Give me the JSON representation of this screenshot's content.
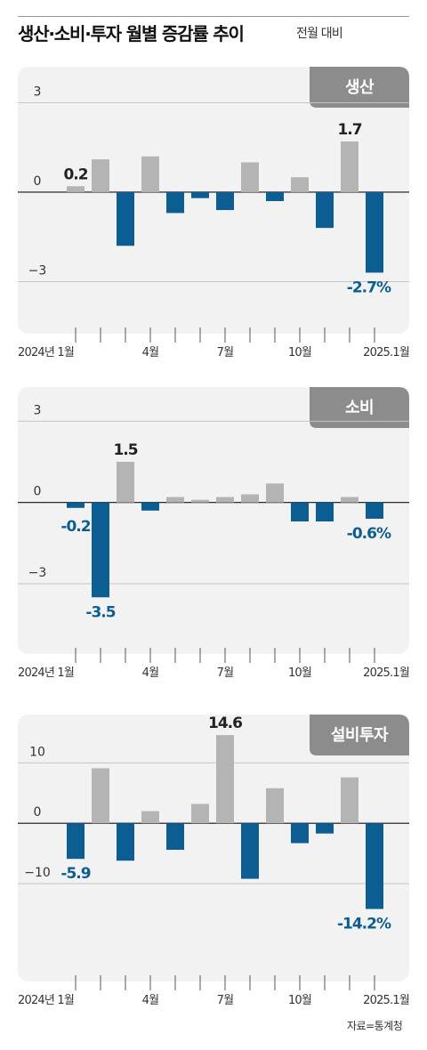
{
  "header": {
    "title": "생산·소비·투자 월별 증감률 추이",
    "subtitle": "전월 대비"
  },
  "source": "자료=통계청",
  "colors": {
    "positive": "#b4b4b4",
    "negative": "#0c5e92",
    "panel_bg": "#f2f2f2",
    "tag_bg": "#8c8c8c"
  },
  "chart_data": [
    {
      "type": "bar",
      "title": "생산",
      "categories": [
        "2024-01",
        "2024-02",
        "2024-03",
        "2024-04",
        "2024-05",
        "2024-06",
        "2024-07",
        "2024-08",
        "2024-09",
        "2024-10",
        "2024-11",
        "2024-12",
        "2025-01"
      ],
      "values": [
        0.2,
        1.1,
        -1.8,
        1.2,
        -0.7,
        -0.2,
        -0.6,
        1.0,
        -0.3,
        0.5,
        -1.2,
        1.7,
        -2.7
      ],
      "value_labels": [
        {
          "index": 0,
          "text": "0.2"
        },
        {
          "index": 11,
          "text": "1.7"
        },
        {
          "index": 12,
          "text": "-2.7%"
        }
      ],
      "yticks": [
        {
          "value": 3,
          "text": "3"
        },
        {
          "value": 0,
          "text": "0"
        },
        {
          "value": -3,
          "text": "−3"
        }
      ],
      "xtick_labels": [
        {
          "index": 0,
          "text": "2024년 1월"
        },
        {
          "index": 3,
          "text": "4월"
        },
        {
          "index": 6,
          "text": "7월"
        },
        {
          "index": 9,
          "text": "10월"
        },
        {
          "index": 12,
          "text": "2025.1월"
        }
      ],
      "ylim": [
        -4.3,
        3.7
      ]
    },
    {
      "type": "bar",
      "title": "소비",
      "categories": [
        "2024-01",
        "2024-02",
        "2024-03",
        "2024-04",
        "2024-05",
        "2024-06",
        "2024-07",
        "2024-08",
        "2024-09",
        "2024-10",
        "2024-11",
        "2024-12",
        "2025-01"
      ],
      "values": [
        -0.2,
        -3.5,
        1.5,
        -0.3,
        0.2,
        0.1,
        0.2,
        0.3,
        0.7,
        -0.7,
        -0.7,
        0.2,
        -0.6
      ],
      "value_labels": [
        {
          "index": 0,
          "text": "-0.2"
        },
        {
          "index": 1,
          "text": "-3.5"
        },
        {
          "index": 2,
          "text": "1.5"
        },
        {
          "index": 12,
          "text": "-0.6%"
        }
      ],
      "yticks": [
        {
          "value": 3,
          "text": "3"
        },
        {
          "value": 0,
          "text": "0"
        },
        {
          "value": -3,
          "text": "−3"
        }
      ],
      "xtick_labels": [
        {
          "index": 0,
          "text": "2024년 1월"
        },
        {
          "index": 3,
          "text": "4월"
        },
        {
          "index": 6,
          "text": "7월"
        },
        {
          "index": 9,
          "text": "10월"
        },
        {
          "index": 12,
          "text": "2025.1월"
        }
      ],
      "ylim": [
        -5.1,
        3.7
      ]
    },
    {
      "type": "bar",
      "title": "설비투자",
      "categories": [
        "2024-01",
        "2024-02",
        "2024-03",
        "2024-04",
        "2024-05",
        "2024-06",
        "2024-07",
        "2024-08",
        "2024-09",
        "2024-10",
        "2024-11",
        "2024-12",
        "2025-01"
      ],
      "values": [
        -5.9,
        9.1,
        -6.2,
        2.0,
        -4.4,
        3.2,
        14.6,
        -9.2,
        5.8,
        -3.3,
        -1.7,
        7.6,
        -14.2
      ],
      "value_labels": [
        {
          "index": 0,
          "text": "-5.9"
        },
        {
          "index": 6,
          "text": "14.6"
        },
        {
          "index": 12,
          "text": "-14.2%"
        }
      ],
      "yticks": [
        {
          "value": 10,
          "text": "10"
        },
        {
          "value": 0,
          "text": "0"
        },
        {
          "value": -10,
          "text": "−10"
        }
      ],
      "xtick_labels": [
        {
          "index": 0,
          "text": "2024년 1월"
        },
        {
          "index": 3,
          "text": "4월"
        },
        {
          "index": 6,
          "text": "7월"
        },
        {
          "index": 9,
          "text": "10월"
        },
        {
          "index": 12,
          "text": "2025.1월"
        }
      ],
      "ylim": [
        -24,
        15.5
      ]
    }
  ]
}
